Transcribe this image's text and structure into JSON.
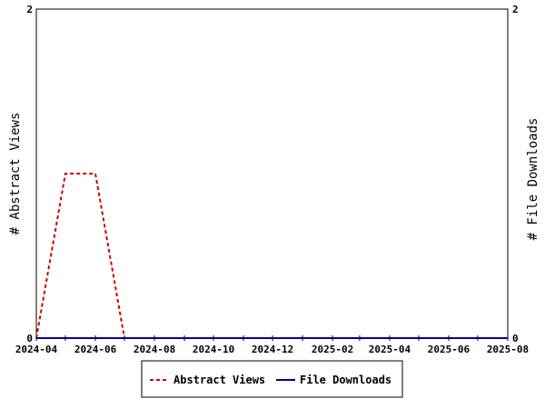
{
  "chart_data": {
    "type": "line",
    "x_ticks": [
      "2024-04",
      "2024-06",
      "2024-08",
      "2024-10",
      "2024-12",
      "2025-02",
      "2025-04",
      "2025-06",
      "2025-08"
    ],
    "xlim": [
      "2024-04-01",
      "2025-08-01"
    ],
    "y_left": {
      "label": "# Abstract Views",
      "ylim": [
        0,
        2
      ],
      "ticks": [
        "0",
        "2"
      ]
    },
    "y_right": {
      "label": "# File Downloads",
      "ylim": [
        0,
        2
      ],
      "ticks": [
        "0",
        "2"
      ]
    },
    "series": [
      {
        "name": "Abstract Views",
        "axis": "left",
        "color": "#cc0000",
        "style": "dashed",
        "points": [
          [
            "2024-04-01",
            0
          ],
          [
            "2024-05-01",
            1
          ],
          [
            "2024-06-01",
            1
          ],
          [
            "2024-07-01",
            0
          ],
          [
            "2025-08-01",
            0
          ]
        ]
      },
      {
        "name": "File Downloads",
        "axis": "right",
        "color": "#000099",
        "style": "solid",
        "points": [
          [
            "2024-04-01",
            0
          ],
          [
            "2025-08-01",
            0
          ]
        ]
      }
    ],
    "legend": {
      "placement": "bottom-center"
    },
    "grid": false
  }
}
